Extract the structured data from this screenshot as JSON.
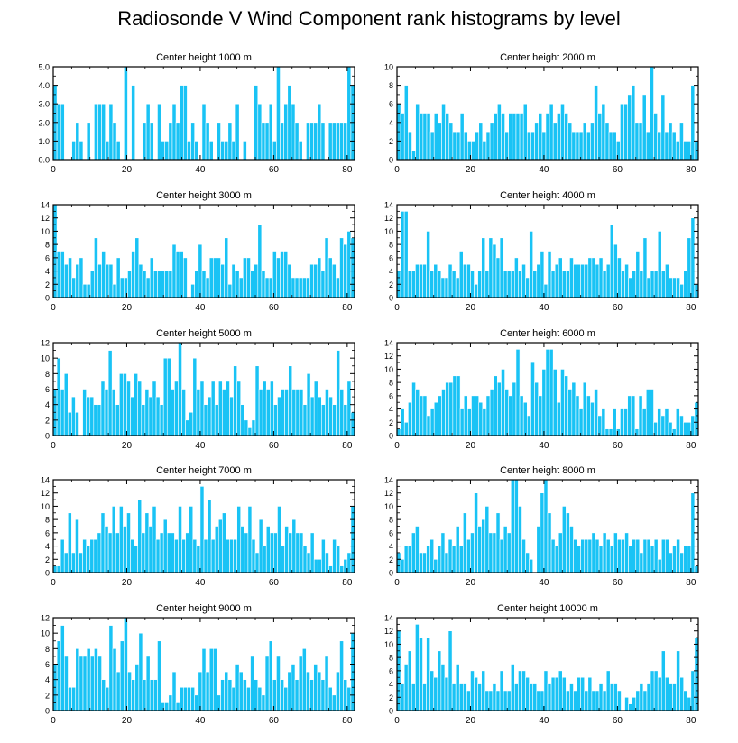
{
  "title": "Radiosonde V Wind Component rank histograms by level",
  "colors": {
    "bar": "#19C3F5",
    "bar_edge": "#ffffff",
    "axis": "#000000"
  },
  "chart_data": [
    {
      "type": "bar",
      "title": "Center height 1000 m",
      "xlim": [
        0,
        82
      ],
      "ylim": [
        0,
        5
      ],
      "xticks": [
        0,
        20,
        40,
        60,
        80
      ],
      "yticks": [
        0,
        1,
        2,
        3,
        4,
        5
      ],
      "ytick_labels": [
        "0.0",
        "1.0",
        "2.0",
        "3.0",
        "4.0",
        "5.0"
      ],
      "values": [
        4,
        3,
        3,
        0,
        0,
        1,
        2,
        1,
        0,
        2,
        0,
        3,
        3,
        3,
        1,
        3,
        2,
        1,
        0,
        5,
        0,
        4,
        0,
        0,
        2,
        3,
        2,
        0,
        3,
        1,
        1,
        2,
        3,
        2,
        4,
        4,
        1,
        2,
        1,
        0,
        3,
        2,
        1,
        0,
        2,
        1,
        1,
        2,
        1,
        3,
        0,
        1,
        0,
        0,
        4,
        3,
        2,
        2,
        3,
        1,
        5,
        2,
        3,
        4,
        3,
        2,
        1,
        0,
        2,
        2,
        2,
        3,
        2,
        0,
        2,
        2,
        2,
        2,
        2,
        5,
        4
      ],
      "xlabel": "",
      "ylabel": ""
    },
    {
      "type": "bar",
      "title": "Center height 2000 m",
      "xlim": [
        0,
        82
      ],
      "ylim": [
        0,
        10
      ],
      "xticks": [
        0,
        20,
        40,
        60,
        80
      ],
      "yticks": [
        0,
        2,
        4,
        6,
        8,
        10
      ],
      "ytick_labels": [
        "0",
        "2",
        "4",
        "6",
        "8",
        "10"
      ],
      "values": [
        6,
        5,
        8,
        3,
        1,
        6,
        5,
        5,
        5,
        3,
        5,
        4,
        6,
        5,
        4,
        3,
        3,
        5,
        3,
        2,
        2,
        3,
        4,
        2,
        3,
        4,
        5,
        6,
        5,
        3,
        5,
        5,
        5,
        5,
        6,
        3,
        3,
        4,
        5,
        3,
        5,
        6,
        4,
        5,
        6,
        5,
        4,
        3,
        3,
        3,
        4,
        3,
        4,
        8,
        5,
        6,
        4,
        3,
        3,
        2,
        6,
        6,
        7,
        8,
        4,
        4,
        7,
        3,
        10,
        5,
        3,
        7,
        3,
        4,
        3,
        2,
        4,
        2,
        2,
        8,
        2
      ],
      "xlabel": "",
      "ylabel": ""
    },
    {
      "type": "bar",
      "title": "Center height 3000 m",
      "xlim": [
        0,
        82
      ],
      "ylim": [
        0,
        14
      ],
      "xticks": [
        0,
        20,
        40,
        60,
        80
      ],
      "yticks": [
        0,
        2,
        4,
        6,
        8,
        10,
        12,
        14
      ],
      "ytick_labels": [
        "0",
        "2",
        "4",
        "6",
        "8",
        "10",
        "12",
        "14"
      ],
      "values": [
        14,
        7,
        7,
        5,
        6,
        3,
        5,
        6,
        2,
        2,
        4,
        9,
        5,
        7,
        5,
        5,
        2,
        6,
        3,
        3,
        4,
        7,
        9,
        5,
        4,
        3,
        6,
        4,
        4,
        4,
        4,
        4,
        8,
        7,
        7,
        6,
        0,
        2,
        4,
        8,
        4,
        3,
        6,
        6,
        6,
        5,
        9,
        2,
        5,
        4,
        3,
        6,
        6,
        4,
        5,
        11,
        4,
        3,
        3,
        7,
        6,
        7,
        7,
        5,
        3,
        3,
        3,
        3,
        3,
        5,
        5,
        6,
        4,
        9,
        6,
        5,
        3,
        9,
        8,
        10,
        9
      ],
      "xlabel": "",
      "ylabel": ""
    },
    {
      "type": "bar",
      "title": "Center height 4000 m",
      "xlim": [
        0,
        82
      ],
      "ylim": [
        0,
        14
      ],
      "xticks": [
        0,
        20,
        40,
        60,
        80
      ],
      "yticks": [
        0,
        2,
        4,
        6,
        8,
        10,
        12,
        14
      ],
      "ytick_labels": [
        "0",
        "2",
        "4",
        "6",
        "8",
        "10",
        "12",
        "14"
      ],
      "values": [
        4,
        13,
        13,
        4,
        4,
        5,
        5,
        5,
        10,
        4,
        5,
        4,
        3,
        3,
        5,
        4,
        3,
        7,
        5,
        5,
        4,
        2,
        4,
        9,
        4,
        9,
        8,
        6,
        9,
        4,
        4,
        4,
        6,
        4,
        5,
        3,
        10,
        4,
        5,
        7,
        2,
        7,
        4,
        5,
        6,
        4,
        4,
        6,
        5,
        5,
        5,
        5,
        6,
        6,
        5,
        6,
        4,
        5,
        11,
        8,
        6,
        4,
        5,
        3,
        4,
        7,
        4,
        9,
        3,
        4,
        4,
        10,
        4,
        5,
        3,
        3,
        3,
        2,
        4,
        9,
        12,
        2
      ],
      "xlabel": "",
      "ylabel": ""
    },
    {
      "type": "bar",
      "title": "Center height 5000 m",
      "xlim": [
        0,
        82
      ],
      "ylim": [
        0,
        12
      ],
      "xticks": [
        0,
        20,
        40,
        60,
        80
      ],
      "yticks": [
        0,
        2,
        4,
        6,
        8,
        10,
        12
      ],
      "ytick_labels": [
        "0",
        "2",
        "4",
        "6",
        "8",
        "10",
        "12"
      ],
      "values": [
        6,
        10,
        6,
        8,
        3,
        5,
        3,
        0,
        6,
        5,
        5,
        4,
        4,
        7,
        6,
        11,
        6,
        4,
        8,
        8,
        7,
        5,
        8,
        7,
        4,
        6,
        5,
        7,
        5,
        4,
        10,
        10,
        6,
        7,
        12,
        6,
        2,
        3,
        10,
        6,
        7,
        4,
        5,
        7,
        4,
        7,
        6,
        7,
        5,
        9,
        7,
        4,
        2,
        1,
        2,
        9,
        6,
        7,
        6,
        7,
        4,
        5,
        6,
        6,
        9,
        6,
        6,
        6,
        4,
        8,
        5,
        7,
        5,
        4,
        6,
        5,
        4,
        11,
        6,
        4,
        7,
        3
      ],
      "xlabel": "",
      "ylabel": ""
    },
    {
      "type": "bar",
      "title": "Center height 6000 m",
      "xlim": [
        0,
        82
      ],
      "ylim": [
        0,
        14
      ],
      "xticks": [
        0,
        20,
        40,
        60,
        80
      ],
      "yticks": [
        0,
        2,
        4,
        6,
        8,
        10,
        12,
        14
      ],
      "ytick_labels": [
        "0",
        "2",
        "4",
        "6",
        "8",
        "10",
        "12",
        "14"
      ],
      "values": [
        1,
        4,
        2,
        5,
        8,
        7,
        6,
        6,
        3,
        4,
        5,
        6,
        7,
        8,
        8,
        9,
        9,
        4,
        6,
        4,
        6,
        6,
        5,
        4,
        6,
        7,
        9,
        8,
        10,
        7,
        6,
        8,
        13,
        6,
        5,
        3,
        11,
        8,
        6,
        10,
        13,
        13,
        10,
        5,
        10,
        9,
        7,
        8,
        6,
        4,
        8,
        6,
        5,
        7,
        3,
        4,
        1,
        1,
        4,
        1,
        4,
        4,
        6,
        6,
        1,
        6,
        4,
        7,
        7,
        2,
        4,
        3,
        4,
        2,
        1,
        4,
        3,
        2,
        2,
        3,
        5
      ],
      "xlabel": "",
      "ylabel": ""
    },
    {
      "type": "bar",
      "title": "Center height 7000 m",
      "xlim": [
        0,
        82
      ],
      "ylim": [
        0,
        14
      ],
      "xticks": [
        0,
        20,
        40,
        60,
        80
      ],
      "yticks": [
        0,
        2,
        4,
        6,
        8,
        10,
        12,
        14
      ],
      "ytick_labels": [
        "0",
        "2",
        "4",
        "6",
        "8",
        "10",
        "12",
        "14"
      ],
      "values": [
        1,
        1,
        5,
        3,
        9,
        3,
        8,
        3,
        5,
        4,
        5,
        5,
        6,
        9,
        7,
        6,
        10,
        6,
        10,
        7,
        9,
        5,
        4,
        11,
        6,
        9,
        7,
        10,
        5,
        6,
        8,
        6,
        6,
        5,
        10,
        5,
        6,
        10,
        5,
        4,
        13,
        5,
        11,
        5,
        7,
        8,
        9,
        5,
        5,
        5,
        10,
        7,
        6,
        10,
        5,
        3,
        8,
        4,
        7,
        6,
        6,
        10,
        4,
        7,
        6,
        8,
        6,
        6,
        4,
        3,
        6,
        2,
        2,
        5,
        3,
        1,
        5,
        4,
        1,
        2,
        3,
        10
      ],
      "xlabel": "",
      "ylabel": ""
    },
    {
      "type": "bar",
      "title": "Center height 8000 m",
      "xlim": [
        0,
        82
      ],
      "ylim": [
        0,
        14
      ],
      "xticks": [
        0,
        20,
        40,
        60,
        80
      ],
      "yticks": [
        0,
        2,
        4,
        6,
        8,
        10,
        12,
        14
      ],
      "ytick_labels": [
        "0",
        "2",
        "4",
        "6",
        "8",
        "10",
        "12",
        "14"
      ],
      "values": [
        3,
        2,
        4,
        4,
        6,
        7,
        3,
        3,
        4,
        5,
        2,
        4,
        6,
        3,
        5,
        4,
        7,
        4,
        9,
        5,
        6,
        12,
        7,
        8,
        10,
        6,
        6,
        9,
        5,
        7,
        6,
        14,
        14,
        10,
        5,
        3,
        2,
        0,
        7,
        12,
        14,
        9,
        5,
        4,
        6,
        10,
        9,
        7,
        5,
        4,
        5,
        5,
        5,
        6,
        5,
        4,
        6,
        5,
        4,
        6,
        5,
        5,
        6,
        4,
        5,
        5,
        3,
        5,
        5,
        4,
        5,
        2,
        5,
        5,
        3,
        4,
        5,
        3,
        4,
        4,
        12,
        1
      ],
      "xlabel": "",
      "ylabel": ""
    },
    {
      "type": "bar",
      "title": "Center height 9000 m",
      "xlim": [
        0,
        82
      ],
      "ylim": [
        0,
        12
      ],
      "xticks": [
        0,
        20,
        40,
        60,
        80
      ],
      "yticks": [
        0,
        2,
        4,
        6,
        8,
        10,
        12
      ],
      "ytick_labels": [
        "0",
        "2",
        "4",
        "6",
        "8",
        "10",
        "12"
      ],
      "values": [
        6,
        9,
        11,
        7,
        3,
        3,
        8,
        7,
        7,
        8,
        7,
        8,
        7,
        4,
        3,
        11,
        8,
        5,
        9,
        12,
        5,
        4,
        6,
        10,
        4,
        7,
        4,
        4,
        9,
        1,
        1,
        2,
        5,
        1,
        3,
        3,
        3,
        3,
        2,
        5,
        8,
        5,
        8,
        8,
        2,
        4,
        5,
        4,
        3,
        6,
        5,
        4,
        3,
        7,
        4,
        3,
        2,
        7,
        9,
        4,
        7,
        4,
        3,
        5,
        6,
        4,
        7,
        8,
        5,
        4,
        6,
        5,
        4,
        7,
        3,
        2,
        5,
        9,
        4,
        3,
        10
      ],
      "xlabel": "",
      "ylabel": ""
    },
    {
      "type": "bar",
      "title": "Center height 10000 m",
      "xlim": [
        0,
        82
      ],
      "ylim": [
        0,
        14
      ],
      "xticks": [
        0,
        20,
        40,
        60,
        80
      ],
      "yticks": [
        0,
        2,
        4,
        6,
        8,
        10,
        12,
        14
      ],
      "ytick_labels": [
        "0",
        "2",
        "4",
        "6",
        "8",
        "10",
        "12",
        "14"
      ],
      "values": [
        12,
        4,
        7,
        9,
        4,
        13,
        11,
        4,
        11,
        6,
        5,
        9,
        7,
        5,
        12,
        4,
        7,
        4,
        4,
        3,
        6,
        5,
        4,
        6,
        3,
        3,
        4,
        3,
        6,
        3,
        3,
        7,
        4,
        6,
        6,
        5,
        4,
        4,
        3,
        3,
        6,
        4,
        5,
        5,
        6,
        5,
        3,
        4,
        3,
        5,
        5,
        3,
        5,
        3,
        3,
        4,
        3,
        6,
        4,
        4,
        3,
        0,
        2,
        1,
        2,
        3,
        4,
        3,
        4,
        6,
        6,
        5,
        9,
        5,
        4,
        4,
        9,
        5,
        3,
        2,
        6,
        11
      ],
      "xlabel": "",
      "ylabel": ""
    }
  ]
}
